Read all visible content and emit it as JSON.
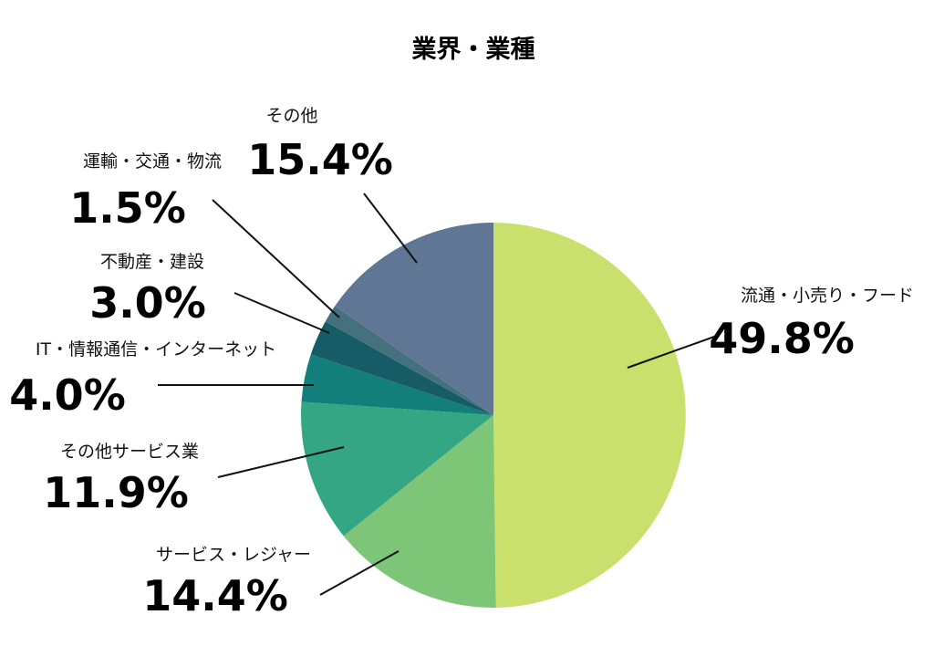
{
  "chart_data": {
    "type": "pie",
    "title": "業界・業種",
    "slices": [
      {
        "name": "流通・小売り・フード",
        "value": 49.8,
        "display": "49.8%",
        "color": "#c9e06c"
      },
      {
        "name": "サービス・レジャー",
        "value": 14.4,
        "display": "14.4%",
        "color": "#7dc577"
      },
      {
        "name": "その他サービス業",
        "value": 11.9,
        "display": "11.9%",
        "color": "#35a683"
      },
      {
        "name": "IT・情報通信・インターネット",
        "value": 4.0,
        "display": "4.0%",
        "color": "#137f7b"
      },
      {
        "name": "不動産・建設",
        "value": 3.0,
        "display": "3.0%",
        "color": "#155c66"
      },
      {
        "name": "運輸・交通・物流",
        "value": 1.5,
        "display": "1.5%",
        "color": "#45717f"
      },
      {
        "name": "その他",
        "value": 15.4,
        "display": "15.4%",
        "color": "#5f7695"
      }
    ],
    "start_angle": "12 o'clock",
    "direction": "clockwise",
    "legend": "none"
  }
}
